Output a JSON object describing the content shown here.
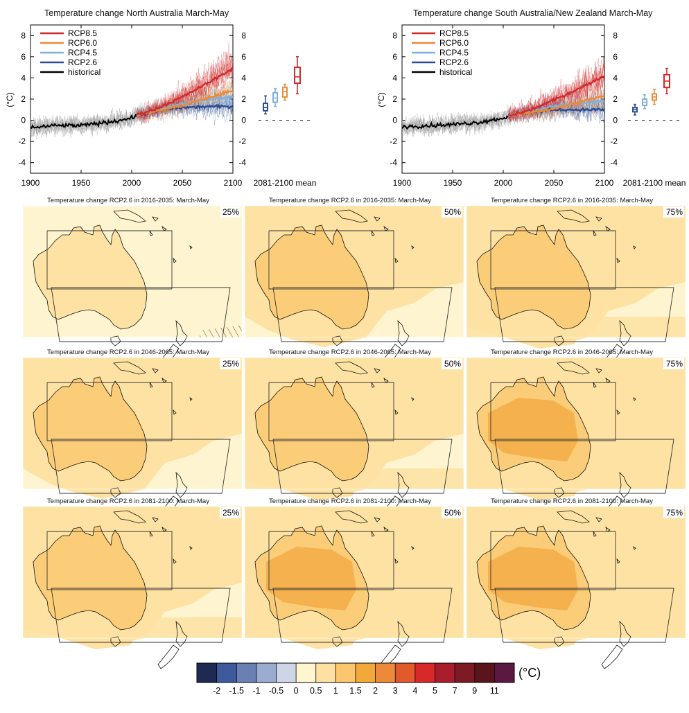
{
  "colors": {
    "rcp85": "#d12a2a",
    "rcp60": "#ec8a35",
    "rcp45": "#7fb0dc",
    "rcp26": "#2f4c8f",
    "historical": "#000000",
    "hist_spread": "#9a9a9a",
    "map_ocean_pale": "#fef5d0",
    "map_level_05": "#fde2a3",
    "map_level_1": "#fbcd79",
    "map_level_15": "#f3ab46"
  },
  "timeseries": [
    {
      "title": "Temperature change North Australia March-May",
      "unit_label": "(°C)",
      "x_ticks": [
        "1900",
        "1950",
        "2000",
        "2050",
        "2100"
      ],
      "y_ticks": [
        "-4",
        "-2",
        "0",
        "2",
        "4",
        "6",
        "8"
      ],
      "mean_label": "2081-2100 mean",
      "legend": [
        "RCP8.5",
        "RCP6.0",
        "RCP4.5",
        "RCP2.6",
        "historical"
      ]
    },
    {
      "title": "Temperature change South Australia/New Zealand March-May",
      "unit_label": "(°C)",
      "x_ticks": [
        "1900",
        "1950",
        "2000",
        "2050",
        "2100"
      ],
      "y_ticks": [
        "-4",
        "-2",
        "0",
        "2",
        "4",
        "6",
        "8"
      ],
      "mean_label": "2081-2100 mean",
      "legend": [
        "RCP8.5",
        "RCP6.0",
        "RCP4.5",
        "RCP2.6",
        "historical"
      ]
    }
  ],
  "maps": [
    {
      "title": "Temperature change RCP2.6 in 2016-2035: March-May",
      "pct": "25%"
    },
    {
      "title": "Temperature change RCP2.6 in 2016-2035: March-May",
      "pct": "50%"
    },
    {
      "title": "Temperature change RCP2.6 in 2016-2035: March-May",
      "pct": "75%"
    },
    {
      "title": "Temperature change RCP2.6 in 2046-2065: March-May",
      "pct": "25%"
    },
    {
      "title": "Temperature change RCP2.6 in 2046-2065: March-May",
      "pct": "50%"
    },
    {
      "title": "Temperature change RCP2.6 in 2046-2065: March-May",
      "pct": "75%"
    },
    {
      "title": "Temperature change RCP2.6 in 2081-2100: March-May",
      "pct": "25%"
    },
    {
      "title": "Temperature change RCP2.6 in 2081-2100: March-May",
      "pct": "50%"
    },
    {
      "title": "Temperature change RCP2.6 in 2081-2100: March-May",
      "pct": "75%"
    }
  ],
  "colorbar": {
    "unit": "(°C)",
    "labels": [
      "-2",
      "-1.5",
      "-1",
      "-0.5",
      "0",
      "0.5",
      "1",
      "1.5",
      "2",
      "3",
      "4",
      "5",
      "7",
      "9",
      "11"
    ],
    "colors": [
      "#1f2a52",
      "#3c5a9c",
      "#6a7fb4",
      "#9bacd1",
      "#cdd6e6",
      "#fff6cf",
      "#fde0a2",
      "#fbc66e",
      "#f3a93a",
      "#ec8a3a",
      "#e05a2c",
      "#d7282a",
      "#a81e2c",
      "#7e1a24",
      "#5a141c",
      "#5b1840"
    ]
  },
  "chart_data": [
    {
      "type": "line",
      "title": "Temperature change North Australia March-May",
      "ylabel": "(°C)",
      "xlim": [
        1900,
        2100
      ],
      "ylim": [
        -5,
        9
      ],
      "series": [
        {
          "name": "historical",
          "x": [
            1900,
            1925,
            1950,
            1975,
            2000,
            2005
          ],
          "y": [
            -0.7,
            -0.5,
            -0.5,
            -0.2,
            0.2,
            0.5
          ]
        },
        {
          "name": "RCP2.6",
          "x": [
            2005,
            2025,
            2050,
            2075,
            2100
          ],
          "y": [
            0.5,
            0.9,
            1.2,
            1.3,
            1.3
          ]
        },
        {
          "name": "RCP4.5",
          "x": [
            2005,
            2025,
            2050,
            2075,
            2100
          ],
          "y": [
            0.5,
            1.0,
            1.6,
            2.0,
            2.2
          ]
        },
        {
          "name": "RCP6.0",
          "x": [
            2005,
            2025,
            2050,
            2075,
            2100
          ],
          "y": [
            0.5,
            0.9,
            1.4,
            2.1,
            2.8
          ]
        },
        {
          "name": "RCP8.5",
          "x": [
            2005,
            2025,
            2050,
            2075,
            2100
          ],
          "y": [
            0.5,
            1.1,
            2.2,
            3.5,
            4.9
          ]
        }
      ],
      "boxplots_2081_2100_mean": [
        {
          "name": "RCP2.6",
          "min": 0.6,
          "q1": 0.9,
          "median": 1.2,
          "q3": 1.6,
          "max": 2.3
        },
        {
          "name": "RCP4.5",
          "min": 1.3,
          "q1": 1.7,
          "median": 2.1,
          "q3": 2.6,
          "max": 3.0
        },
        {
          "name": "RCP6.0",
          "min": 1.9,
          "q1": 2.2,
          "median": 2.7,
          "q3": 3.1,
          "max": 3.4
        },
        {
          "name": "RCP8.5",
          "min": 2.5,
          "q1": 3.5,
          "median": 4.1,
          "q3": 5.0,
          "max": 6.0
        }
      ]
    },
    {
      "type": "line",
      "title": "Temperature change South Australia/New Zealand March-May",
      "ylabel": "(°C)",
      "xlim": [
        1900,
        2100
      ],
      "ylim": [
        -5,
        9
      ],
      "series": [
        {
          "name": "historical",
          "x": [
            1900,
            1925,
            1950,
            1975,
            2000,
            2005
          ],
          "y": [
            -0.6,
            -0.5,
            -0.4,
            -0.2,
            0.2,
            0.4
          ]
        },
        {
          "name": "RCP2.6",
          "x": [
            2005,
            2025,
            2050,
            2075,
            2100
          ],
          "y": [
            0.4,
            0.7,
            1.0,
            1.0,
            1.0
          ]
        },
        {
          "name": "RCP4.5",
          "x": [
            2005,
            2025,
            2050,
            2075,
            2100
          ],
          "y": [
            0.4,
            0.8,
            1.3,
            1.6,
            1.8
          ]
        },
        {
          "name": "RCP6.0",
          "x": [
            2005,
            2025,
            2050,
            2075,
            2100
          ],
          "y": [
            0.4,
            0.7,
            1.1,
            1.7,
            2.3
          ]
        },
        {
          "name": "RCP8.5",
          "x": [
            2005,
            2025,
            2050,
            2075,
            2100
          ],
          "y": [
            0.4,
            0.9,
            1.9,
            3.0,
            4.2
          ]
        }
      ],
      "boxplots_2081_2100_mean": [
        {
          "name": "RCP2.6",
          "min": 0.5,
          "q1": 0.8,
          "median": 1.0,
          "q3": 1.2,
          "max": 1.5
        },
        {
          "name": "RCP4.5",
          "min": 1.1,
          "q1": 1.4,
          "median": 1.7,
          "q3": 2.0,
          "max": 2.4
        },
        {
          "name": "RCP6.0",
          "min": 1.5,
          "q1": 1.9,
          "median": 2.2,
          "q3": 2.5,
          "max": 2.9
        },
        {
          "name": "RCP8.5",
          "min": 2.5,
          "q1": 3.1,
          "median": 3.7,
          "q3": 4.3,
          "max": 4.9
        }
      ]
    }
  ]
}
